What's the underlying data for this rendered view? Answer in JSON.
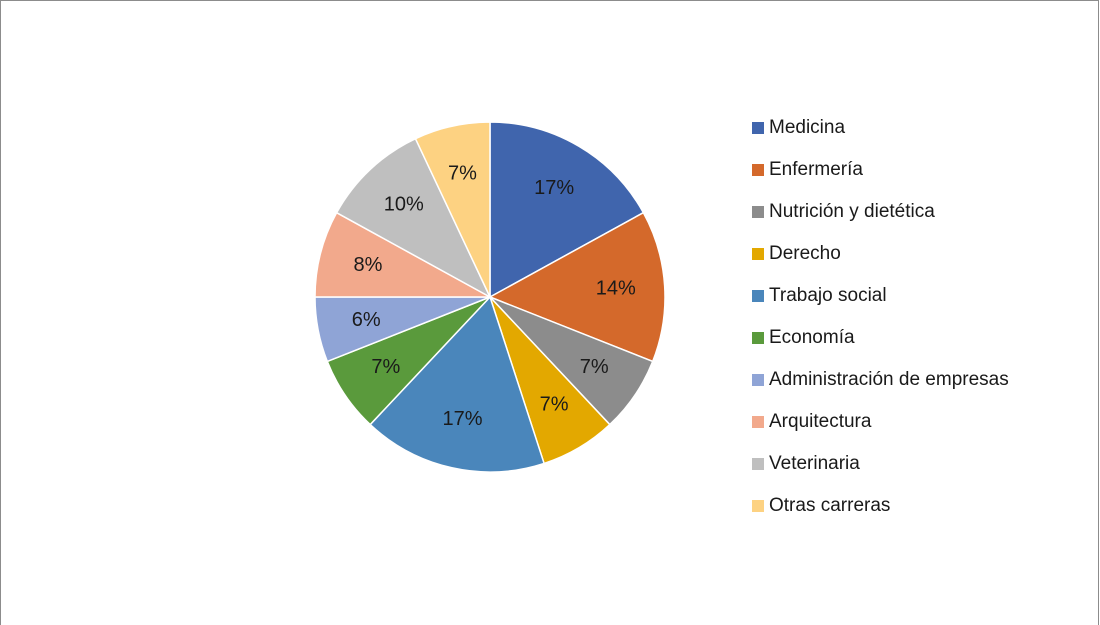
{
  "chart_data": {
    "type": "pie",
    "categories": [
      "Medicina",
      "Enfermería",
      "Nutrición y dietética",
      "Derecho",
      "Trabajo social",
      "Economía",
      "Administración de empresas",
      "Arquitectura",
      "Veterinaria",
      "Otras carreras"
    ],
    "values": [
      17,
      14,
      7,
      7,
      17,
      7,
      6,
      8,
      10,
      7
    ],
    "value_labels": [
      "17%",
      "14%",
      "7%",
      "7%",
      "17%",
      "7%",
      "6%",
      "8%",
      "10%",
      "7%"
    ],
    "colors": [
      "#4065ad",
      "#d4692b",
      "#8c8c8c",
      "#e3a800",
      "#4a86bb",
      "#5a9a3c",
      "#8fa4d6",
      "#f2a98c",
      "#bfbfbf",
      "#fdd282"
    ],
    "legend": "right"
  }
}
